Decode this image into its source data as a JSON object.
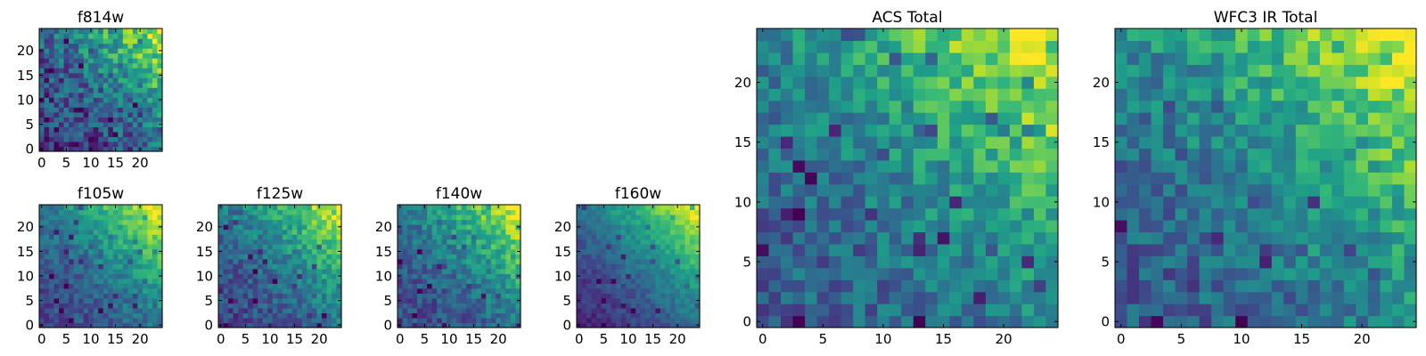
{
  "figure": {
    "description_colormap": "viridis"
  },
  "colors": {
    "background": "#ffffff",
    "axis": "#000000"
  },
  "chart_data": [
    {
      "id": "p1",
      "type": "heatmap",
      "title": "f814w",
      "grid": 25,
      "xticks": [
        0,
        5,
        10,
        15,
        20
      ],
      "yticks": [
        0,
        5,
        10,
        15,
        20
      ],
      "xlim": [
        -0.5,
        24.5
      ],
      "ylim": [
        -0.5,
        24.5
      ],
      "trend": "brightest in top-right corner",
      "seed": 11,
      "noise": 0.22,
      "base": 0.18,
      "gain": 0.8,
      "power": 2.2
    },
    {
      "id": "p2",
      "type": "heatmap",
      "title": "f105w",
      "grid": 25,
      "xticks": [
        0,
        5,
        10,
        15,
        20
      ],
      "yticks": [
        0,
        5,
        10,
        15,
        20
      ],
      "xlim": [
        -0.5,
        24.5
      ],
      "ylim": [
        -0.5,
        24.5
      ],
      "trend": "brightest in top-right corner",
      "seed": 23,
      "noise": 0.12,
      "base": 0.22,
      "gain": 0.78,
      "power": 2.0
    },
    {
      "id": "p3",
      "type": "heatmap",
      "title": "f125w",
      "grid": 25,
      "xticks": [
        0,
        5,
        10,
        15,
        20
      ],
      "yticks": [
        0,
        5,
        10,
        15,
        20
      ],
      "xlim": [
        -0.5,
        24.5
      ],
      "ylim": [
        -0.5,
        24.5
      ],
      "trend": "brightest in top-right corner",
      "seed": 37,
      "noise": 0.14,
      "base": 0.22,
      "gain": 0.76,
      "power": 2.0
    },
    {
      "id": "p4",
      "type": "heatmap",
      "title": "f140w",
      "grid": 25,
      "xticks": [
        0,
        5,
        10,
        15,
        20
      ],
      "yticks": [
        0,
        5,
        10,
        15,
        20
      ],
      "xlim": [
        -0.5,
        24.5
      ],
      "ylim": [
        -0.5,
        24.5
      ],
      "trend": "brightest in top-right corner",
      "seed": 41,
      "noise": 0.14,
      "base": 0.22,
      "gain": 0.78,
      "power": 2.0
    },
    {
      "id": "p5",
      "type": "heatmap",
      "title": "f160w",
      "grid": 25,
      "xticks": [
        0,
        5,
        10,
        15,
        20
      ],
      "yticks": [
        0,
        5,
        10,
        15,
        20
      ],
      "xlim": [
        -0.5,
        24.5
      ],
      "ylim": [
        -0.5,
        24.5
      ],
      "trend": "brightest in top-right corner, darkest left edge",
      "seed": 53,
      "noise": 0.08,
      "base": 0.12,
      "gain": 0.88,
      "power": 1.7
    },
    {
      "id": "p6",
      "type": "heatmap",
      "title": "ACS Total",
      "grid": 25,
      "xticks": [
        0,
        5,
        10,
        15,
        20
      ],
      "yticks": [
        0,
        5,
        10,
        15,
        20
      ],
      "xlim": [
        -0.5,
        24.5
      ],
      "ylim": [
        -0.5,
        24.5
      ],
      "trend": "brightest in top-right corner",
      "seed": 67,
      "noise": 0.16,
      "base": 0.3,
      "gain": 0.7,
      "power": 2.0
    },
    {
      "id": "p7",
      "type": "heatmap",
      "title": "WFC3 IR Total",
      "grid": 25,
      "xticks": [
        0,
        5,
        10,
        15,
        20
      ],
      "yticks": [
        0,
        5,
        10,
        15,
        20
      ],
      "xlim": [
        -0.5,
        24.5
      ],
      "ylim": [
        -0.5,
        24.5
      ],
      "trend": "brightest in top-right corner",
      "seed": 79,
      "noise": 0.16,
      "base": 0.3,
      "gain": 0.7,
      "power": 2.0
    }
  ]
}
